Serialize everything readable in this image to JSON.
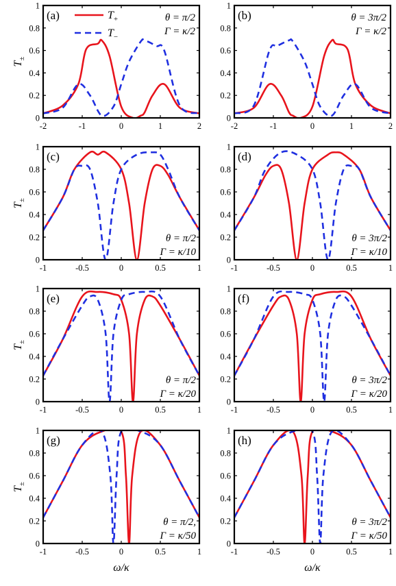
{
  "figure": {
    "ylabel_main": "T",
    "ylabel_sub": "±",
    "xlabel": "ω/κ"
  },
  "legend": [
    {
      "main": "T",
      "sub": "+",
      "color": "#e8141c",
      "dash": false
    },
    {
      "main": "T",
      "sub": "−",
      "color": "#1f2fe0",
      "dash": true
    }
  ],
  "colors": {
    "t_plus": "#e8141c",
    "t_minus": "#1f2fe0"
  },
  "chart_data": [
    {
      "id": "a",
      "type": "line",
      "label": "(a)",
      "annotation": [
        "θ = π/2",
        "Γ = κ/2"
      ],
      "xlim": [
        -2,
        2
      ],
      "ylim": [
        0,
        1
      ],
      "xticks": [
        "-2",
        "-1",
        "0",
        "1",
        "2"
      ],
      "yticks": [
        "0",
        "0.2",
        "0.4",
        "0.6",
        "0.8",
        "1"
      ],
      "theta_sign": 1,
      "gamma": 0.5,
      "series": [
        {
          "name": "T+",
          "x": [
            -2,
            -1.5,
            -1.1,
            -0.9,
            -0.6,
            -0.5,
            -0.3,
            0,
            0.3,
            0.5,
            0.6,
            0.8,
            1.1,
            1.5,
            2
          ],
          "y": [
            0.04,
            0.11,
            0.3,
            0.61,
            0.66,
            0.69,
            0.55,
            0.1,
            0.0,
            0.02,
            0.05,
            0.2,
            0.3,
            0.09,
            0.04
          ]
        },
        {
          "name": "T-",
          "x": [
            -2,
            -1.5,
            -1.1,
            -0.8,
            -0.5,
            -0.2,
            0,
            0.2,
            0.5,
            0.6,
            0.9,
            1.1,
            1.5,
            2
          ],
          "y": [
            0.04,
            0.09,
            0.3,
            0.2,
            0.02,
            0.1,
            0.3,
            0.5,
            0.68,
            0.69,
            0.64,
            0.6,
            0.11,
            0.04
          ]
        }
      ]
    },
    {
      "id": "b",
      "type": "line",
      "label": "(b)",
      "annotation": [
        "θ = 3π/2",
        "Γ = κ/2"
      ],
      "xlim": [
        -2,
        2
      ],
      "ylim": [
        0,
        1
      ],
      "xticks": [
        "-2",
        "-1",
        "0",
        "1",
        "2"
      ],
      "yticks": [
        "0",
        "0.2",
        "0.4",
        "0.6",
        "0.8",
        "1"
      ],
      "theta_sign": -1,
      "gamma": 0.5,
      "series": [
        {
          "name": "T+",
          "x": [
            -2,
            -1.5,
            -1.1,
            -0.8,
            -0.6,
            -0.5,
            -0.3,
            0,
            0.3,
            0.5,
            0.6,
            0.9,
            1.1,
            1.5,
            2
          ],
          "y": [
            0.04,
            0.09,
            0.3,
            0.2,
            0.05,
            0.02,
            0.0,
            0.1,
            0.55,
            0.69,
            0.66,
            0.61,
            0.3,
            0.11,
            0.04
          ]
        },
        {
          "name": "T-",
          "x": [
            -2,
            -1.5,
            -1.1,
            -0.9,
            -0.6,
            -0.5,
            -0.2,
            0,
            0.2,
            0.5,
            0.8,
            1.1,
            1.5,
            2
          ],
          "y": [
            0.04,
            0.11,
            0.6,
            0.64,
            0.69,
            0.68,
            0.5,
            0.3,
            0.1,
            0.02,
            0.2,
            0.3,
            0.09,
            0.04
          ]
        }
      ]
    },
    {
      "id": "c",
      "type": "line",
      "label": "(c)",
      "annotation": [
        "θ = π/2",
        "Γ = κ/10"
      ],
      "xlim": [
        -1,
        1
      ],
      "ylim": [
        0,
        1
      ],
      "xticks": [
        "-1",
        "-0.5",
        "0",
        "0.5",
        "1"
      ],
      "yticks": [
        "0",
        "0.2",
        "0.4",
        "0.6",
        "0.8",
        "1"
      ],
      "theta_sign": 1,
      "gamma": 0.1,
      "series": [
        {
          "name": "T+",
          "x": [
            -1,
            -0.75,
            -0.6,
            -0.4,
            -0.3,
            -0.2,
            0,
            0.1,
            0.2,
            0.3,
            0.4,
            0.5,
            0.6,
            0.75,
            1
          ],
          "y": [
            0.26,
            0.55,
            0.8,
            0.95,
            0.93,
            0.95,
            0.8,
            0.5,
            0.0,
            0.5,
            0.8,
            0.83,
            0.75,
            0.55,
            0.26
          ]
        },
        {
          "name": "T-",
          "x": [
            -1,
            -0.75,
            -0.6,
            -0.5,
            -0.4,
            -0.3,
            -0.2,
            -0.1,
            0,
            0.2,
            0.4,
            0.5,
            0.6,
            0.75,
            1
          ],
          "y": [
            0.26,
            0.55,
            0.8,
            0.83,
            0.8,
            0.5,
            0.0,
            0.5,
            0.8,
            0.93,
            0.95,
            0.93,
            0.8,
            0.55,
            0.26
          ]
        }
      ]
    },
    {
      "id": "d",
      "type": "line",
      "label": "(d)",
      "annotation": [
        "θ = 3π/2",
        "Γ = κ/10"
      ],
      "xlim": [
        -1,
        1
      ],
      "ylim": [
        0,
        1
      ],
      "xticks": [
        "-1",
        "-0.5",
        "0",
        "0.5",
        "1"
      ],
      "yticks": [
        "0",
        "0.2",
        "0.4",
        "0.6",
        "0.8",
        "1"
      ],
      "theta_sign": -1,
      "gamma": 0.1,
      "series": [
        {
          "name": "T+",
          "x": [
            -1,
            -0.75,
            -0.6,
            -0.5,
            -0.4,
            -0.3,
            -0.2,
            -0.1,
            0,
            0.2,
            0.3,
            0.4,
            0.6,
            0.75,
            1
          ],
          "y": [
            0.26,
            0.55,
            0.75,
            0.83,
            0.8,
            0.5,
            0.0,
            0.5,
            0.8,
            0.93,
            0.95,
            0.93,
            0.8,
            0.55,
            0.26
          ]
        },
        {
          "name": "T-",
          "x": [
            -1,
            -0.75,
            -0.6,
            -0.4,
            -0.2,
            0,
            0.1,
            0.2,
            0.3,
            0.4,
            0.5,
            0.6,
            0.75,
            1
          ],
          "y": [
            0.26,
            0.55,
            0.8,
            0.95,
            0.93,
            0.8,
            0.5,
            0.0,
            0.5,
            0.8,
            0.83,
            0.8,
            0.55,
            0.26
          ]
        }
      ]
    },
    {
      "id": "e",
      "type": "line",
      "label": "(e)",
      "annotation": [
        "θ = π/2",
        "Γ = κ/20"
      ],
      "xlim": [
        -1,
        1
      ],
      "ylim": [
        0,
        1
      ],
      "xticks": [
        "-1",
        "-0.5",
        "0",
        "0.5",
        "1"
      ],
      "yticks": [
        "0",
        "0.2",
        "0.4",
        "0.6",
        "0.8",
        "1"
      ],
      "theta_sign": 1,
      "gamma": 0.05,
      "series": [
        {
          "name": "T+",
          "x": [
            -1,
            -0.75,
            -0.5,
            -0.3,
            -0.1,
            0,
            0.1,
            0.15,
            0.2,
            0.3,
            0.4,
            0.5,
            0.75,
            1
          ],
          "y": [
            0.23,
            0.55,
            0.93,
            0.97,
            0.95,
            0.9,
            0.6,
            0.0,
            0.6,
            0.9,
            0.93,
            0.85,
            0.55,
            0.23
          ]
        },
        {
          "name": "T-",
          "x": [
            -1,
            -0.75,
            -0.5,
            -0.4,
            -0.3,
            -0.2,
            -0.15,
            -0.1,
            0,
            0.1,
            0.3,
            0.5,
            0.75,
            1
          ],
          "y": [
            0.23,
            0.55,
            0.85,
            0.93,
            0.9,
            0.6,
            0.0,
            0.6,
            0.9,
            0.95,
            0.97,
            0.93,
            0.55,
            0.23
          ]
        }
      ]
    },
    {
      "id": "f",
      "type": "line",
      "label": "(f)",
      "annotation": [
        "θ = 3π/2",
        "Γ = κ/20"
      ],
      "xlim": [
        -1,
        1
      ],
      "ylim": [
        0,
        1
      ],
      "xticks": [
        "-1",
        "-0.5",
        "0",
        "0.5",
        "1"
      ],
      "yticks": [
        "0",
        "0.2",
        "0.4",
        "0.6",
        "0.8",
        "1"
      ],
      "theta_sign": -1,
      "gamma": 0.05,
      "series": [
        {
          "name": "T+",
          "x": [
            -1,
            -0.75,
            -0.5,
            -0.4,
            -0.3,
            -0.2,
            -0.15,
            -0.1,
            0,
            0.1,
            0.3,
            0.5,
            0.75,
            1
          ],
          "y": [
            0.23,
            0.55,
            0.85,
            0.93,
            0.9,
            0.6,
            0.0,
            0.6,
            0.9,
            0.95,
            0.97,
            0.93,
            0.55,
            0.23
          ]
        },
        {
          "name": "T-",
          "x": [
            -1,
            -0.75,
            -0.5,
            -0.3,
            -0.1,
            0,
            0.1,
            0.15,
            0.2,
            0.3,
            0.4,
            0.5,
            0.75,
            1
          ],
          "y": [
            0.23,
            0.55,
            0.93,
            0.97,
            0.95,
            0.9,
            0.6,
            0.0,
            0.6,
            0.9,
            0.93,
            0.85,
            0.55,
            0.23
          ]
        }
      ]
    },
    {
      "id": "g",
      "type": "line",
      "label": "(g)",
      "annotation": [
        "θ = π/2,",
        "Γ = κ/50"
      ],
      "xlim": [
        -1,
        1
      ],
      "ylim": [
        0,
        1
      ],
      "xticks": [
        "-1",
        "-0.5",
        "0",
        "0.5",
        "1"
      ],
      "yticks": [
        "0",
        "0.2",
        "0.4",
        "0.6",
        "0.8",
        "1"
      ],
      "theta_sign": 1,
      "gamma": 0.02,
      "series": [
        {
          "name": "T+",
          "x": [
            -1,
            -0.75,
            -0.5,
            -0.25,
            0,
            0.06,
            0.1,
            0.14,
            0.25,
            0.5,
            0.75,
            1
          ],
          "y": [
            0.23,
            0.55,
            0.87,
            0.99,
            0.99,
            0.6,
            0.0,
            0.6,
            0.99,
            0.87,
            0.55,
            0.23
          ]
        },
        {
          "name": "T-",
          "x": [
            -1,
            -0.75,
            -0.5,
            -0.25,
            -0.14,
            -0.1,
            -0.06,
            0,
            0.25,
            0.5,
            0.75,
            1
          ],
          "y": [
            0.23,
            0.55,
            0.87,
            0.99,
            0.6,
            0.0,
            0.6,
            0.99,
            0.99,
            0.87,
            0.55,
            0.23
          ]
        }
      ]
    },
    {
      "id": "h",
      "type": "line",
      "label": "(h)",
      "annotation": [
        "θ = 3π/2",
        "Γ = κ/50"
      ],
      "xlim": [
        -1,
        1
      ],
      "ylim": [
        0,
        1
      ],
      "xticks": [
        "-1",
        "-0.5",
        "0",
        "0.5",
        "1"
      ],
      "yticks": [
        "0",
        "0.2",
        "0.4",
        "0.6",
        "0.8",
        "1"
      ],
      "theta_sign": -1,
      "gamma": 0.02,
      "series": [
        {
          "name": "T+",
          "x": [
            -1,
            -0.75,
            -0.5,
            -0.25,
            -0.14,
            -0.1,
            -0.06,
            0,
            0.25,
            0.5,
            0.75,
            1
          ],
          "y": [
            0.23,
            0.55,
            0.87,
            0.99,
            0.6,
            0.0,
            0.6,
            0.99,
            0.99,
            0.87,
            0.55,
            0.23
          ]
        },
        {
          "name": "T-",
          "x": [
            -1,
            -0.75,
            -0.5,
            -0.25,
            0,
            0.06,
            0.1,
            0.14,
            0.25,
            0.5,
            0.75,
            1
          ],
          "y": [
            0.23,
            0.55,
            0.87,
            0.99,
            0.99,
            0.6,
            0.0,
            0.6,
            0.99,
            0.87,
            0.55,
            0.23
          ]
        }
      ]
    }
  ]
}
